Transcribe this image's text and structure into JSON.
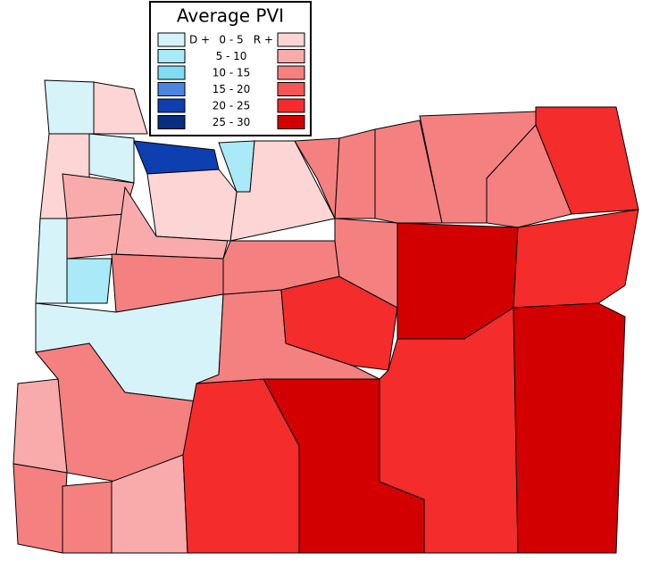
{
  "legend": {
    "title": "Average PVI",
    "dem_prefix": "D +",
    "rep_prefix": "R +",
    "rows": [
      {
        "label": "0  -  5",
        "dem_color": "#d7f3fa",
        "rep_color": "#fdd5d5"
      },
      {
        "label": "5  -  10",
        "dem_color": "#aaeaf8",
        "rep_color": "#f9abab"
      },
      {
        "label": "10  -  15",
        "dem_color": "#7fdcf3",
        "rep_color": "#f58080"
      },
      {
        "label": "15  -  20",
        "dem_color": "#4a86e0",
        "rep_color": "#f55555"
      },
      {
        "label": "20  -  25",
        "dem_color": "#0d3fb0",
        "rep_color": "#f42c2c"
      },
      {
        "label": "25  -  30",
        "dem_color": "#062e82",
        "rep_color": "#d20000"
      }
    ]
  }
}
